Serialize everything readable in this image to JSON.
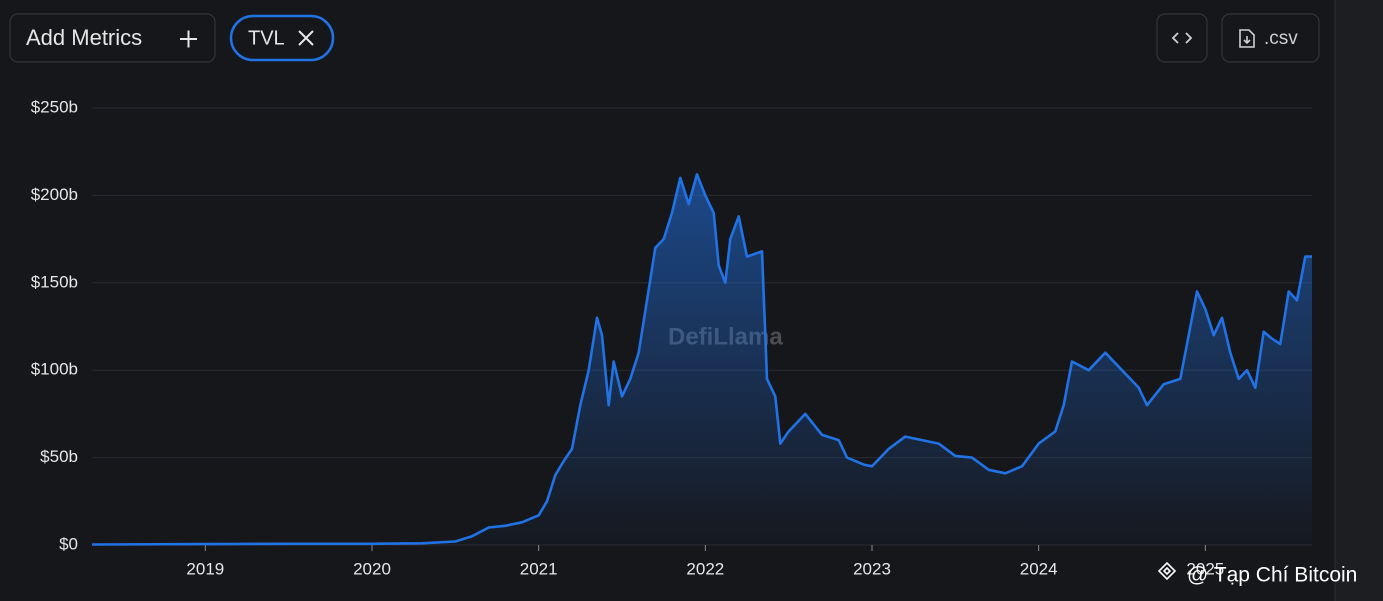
{
  "ui": {
    "add_metrics": "Add Metrics",
    "csv": ".csv",
    "watermark": "DefiLlama",
    "credit": "@ Tạp Chí Bitcoin"
  },
  "chart_data": {
    "type": "area",
    "x": [
      2018.32,
      2019.0,
      2019.5,
      2020.0,
      2020.3,
      2020.5,
      2020.6,
      2020.7,
      2020.8,
      2020.9,
      2021.0,
      2021.05,
      2021.1,
      2021.15,
      2021.2,
      2021.25,
      2021.3,
      2021.35,
      2021.38,
      2021.42,
      2021.45,
      2021.5,
      2021.55,
      2021.6,
      2021.65,
      2021.7,
      2021.75,
      2021.8,
      2021.85,
      2021.9,
      2021.95,
      2022.0,
      2022.05,
      2022.08,
      2022.12,
      2022.15,
      2022.2,
      2022.25,
      2022.34,
      2022.37,
      2022.42,
      2022.45,
      2022.5,
      2022.6,
      2022.7,
      2022.8,
      2022.85,
      2022.95,
      2023.0,
      2023.1,
      2023.2,
      2023.3,
      2023.4,
      2023.5,
      2023.6,
      2023.7,
      2023.8,
      2023.9,
      2024.0,
      2024.1,
      2024.15,
      2024.2,
      2024.3,
      2024.4,
      2024.5,
      2024.6,
      2024.65,
      2024.75,
      2024.85,
      2024.9,
      2024.95,
      2025.0,
      2025.05,
      2025.1,
      2025.15,
      2025.2,
      2025.25,
      2025.3,
      2025.35,
      2025.4,
      2025.45,
      2025.5,
      2025.55,
      2025.6,
      2025.64
    ],
    "series": [
      {
        "name": "TVL",
        "color": "#2172e5",
        "values": [
          0.3,
          0.5,
          0.7,
          0.7,
          1,
          2,
          5,
          10,
          11,
          13,
          17,
          25,
          40,
          48,
          55,
          80,
          100,
          130,
          120,
          80,
          105,
          85,
          95,
          110,
          140,
          170,
          175,
          190,
          210,
          195,
          212,
          200,
          190,
          160,
          150,
          175,
          188,
          165,
          168,
          95,
          85,
          58,
          65,
          75,
          63,
          60,
          50,
          46,
          45,
          55,
          62,
          60,
          58,
          51,
          50,
          43,
          41,
          45,
          58,
          65,
          80,
          105,
          100,
          110,
          100,
          90,
          80,
          92,
          95,
          120,
          145,
          135,
          120,
          130,
          110,
          95,
          100,
          90,
          122,
          118,
          115,
          145,
          140,
          165,
          165
        ]
      }
    ],
    "xlim": [
      2018.32,
      2025.64
    ],
    "xticks": [
      2019,
      2020,
      2021,
      2022,
      2023,
      2024,
      2025
    ],
    "ylim": [
      0,
      250
    ],
    "yticks": [
      {
        "value": 0,
        "label": "$0"
      },
      {
        "value": 50,
        "label": "$50b"
      },
      {
        "value": 100,
        "label": "$100b"
      },
      {
        "value": 150,
        "label": "$150b"
      },
      {
        "value": 200,
        "label": "$200b"
      },
      {
        "value": 250,
        "label": "$250b"
      }
    ],
    "grid": true
  }
}
